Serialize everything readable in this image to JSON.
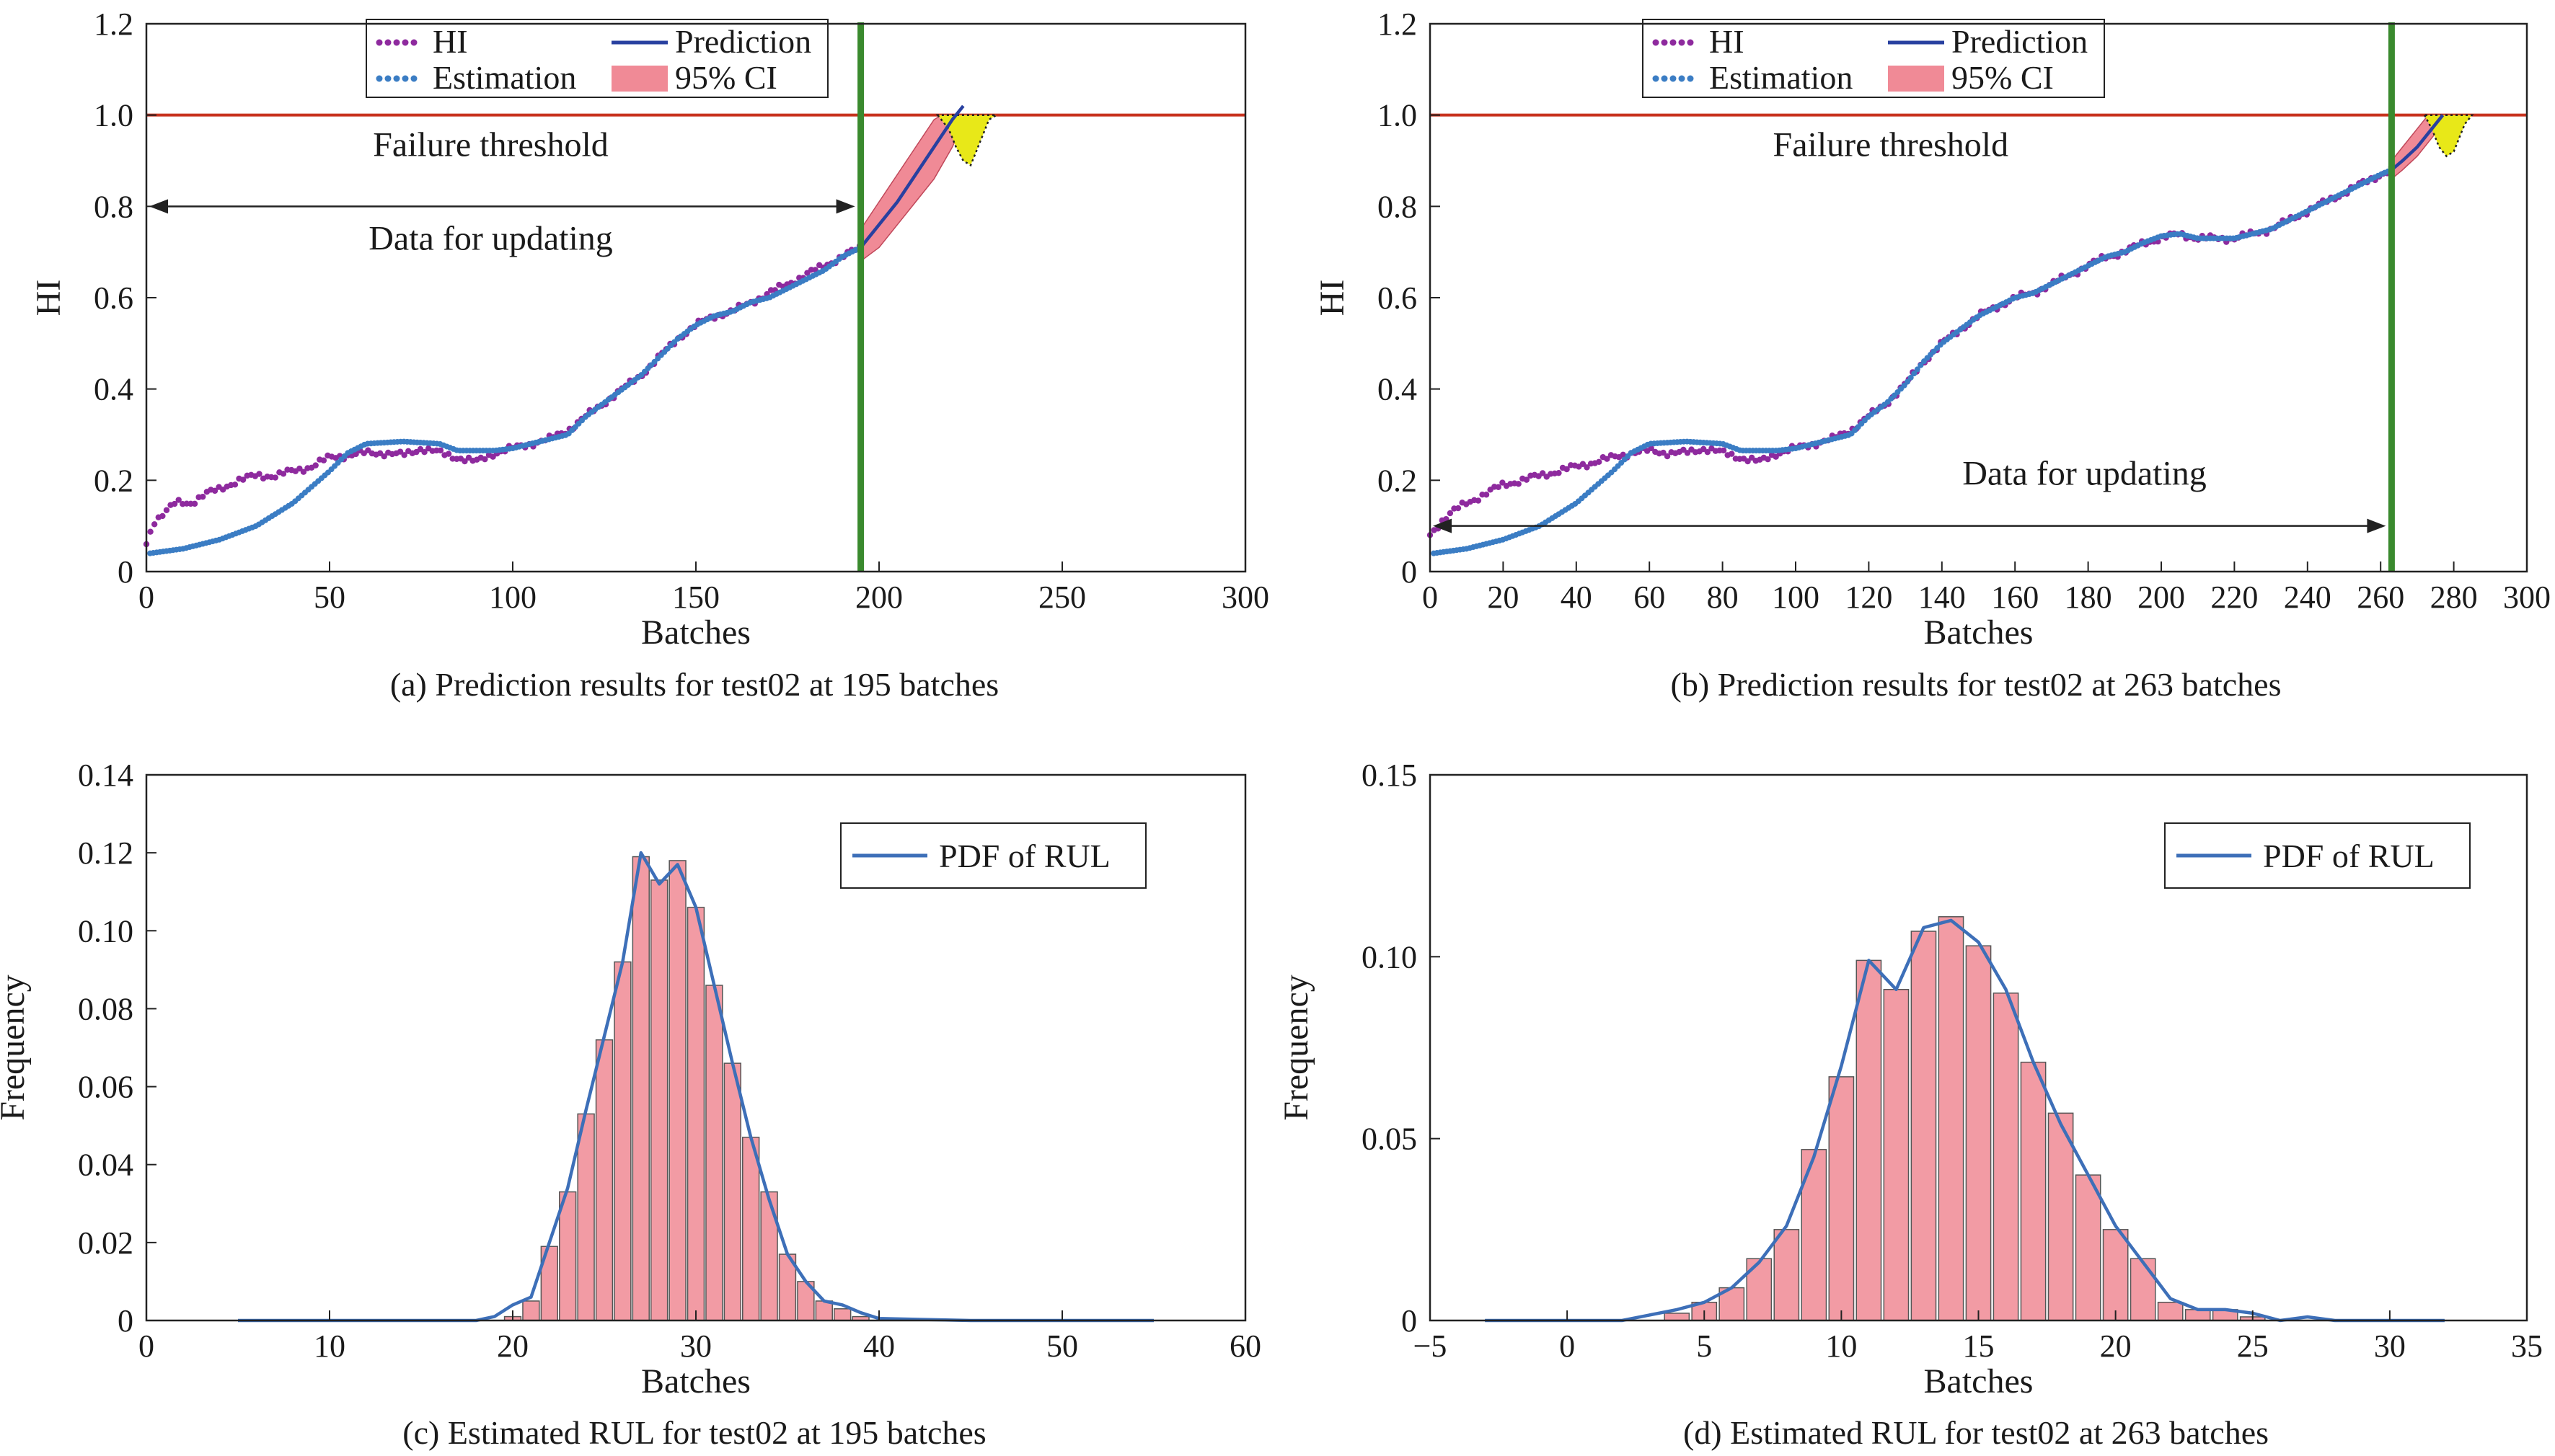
{
  "chart_data": [
    {
      "type": "line",
      "id": "a",
      "caption": "(a) Prediction results for test02 at 195 batches",
      "xlabel": "Batches",
      "ylabel": "HI",
      "xlim": [
        0,
        300
      ],
      "ylim": [
        0,
        1.2
      ],
      "xticks": [
        0,
        50,
        100,
        150,
        200,
        250,
        300
      ],
      "xtick_labels": [
        "0",
        "50",
        "100",
        "150",
        "200",
        "250",
        "300"
      ],
      "yticks": [
        0,
        0.2,
        0.4,
        0.6,
        0.8,
        1.0,
        1.2
      ],
      "ytick_labels": [
        "0",
        "0.2",
        "0.4",
        "0.6",
        "0.8",
        "1.0",
        "1.2"
      ],
      "legend": [
        "HI",
        "Prediction",
        "Estimation",
        "95% CI"
      ],
      "legend_position": "top-center",
      "threshold": 1.0,
      "threshold_label": "Failure threshold",
      "update_label": "Data for updating",
      "update_arrow": {
        "x": [
          0,
          195
        ],
        "y": 0.8
      },
      "label_positions": {
        "threshold_label": [
          94,
          0.91
        ],
        "update_label": [
          94,
          0.705
        ]
      },
      "current_batch": 195,
      "colors": {
        "hi": "#8e2a9e",
        "estimation": "#3b7dc4",
        "prediction": "#2840a0",
        "ci": "#f08a96",
        "threshold": "#c8321e",
        "vline": "#3a8a2e",
        "pdf_fill": "#e8e818"
      },
      "hi_series": [
        [
          0,
          0.06
        ],
        [
          2,
          0.11
        ],
        [
          5,
          0.13
        ],
        [
          8,
          0.15
        ],
        [
          12,
          0.15
        ],
        [
          16,
          0.17
        ],
        [
          20,
          0.18
        ],
        [
          25,
          0.2
        ],
        [
          30,
          0.21
        ],
        [
          35,
          0.21
        ],
        [
          40,
          0.22
        ],
        [
          45,
          0.23
        ],
        [
          50,
          0.25
        ],
        [
          55,
          0.255
        ],
        [
          60,
          0.26
        ],
        [
          65,
          0.26
        ],
        [
          70,
          0.255
        ],
        [
          75,
          0.27
        ],
        [
          80,
          0.26
        ],
        [
          85,
          0.25
        ],
        [
          90,
          0.24
        ],
        [
          95,
          0.26
        ],
        [
          100,
          0.27
        ],
        [
          105,
          0.28
        ],
        [
          110,
          0.29
        ],
        [
          115,
          0.31
        ],
        [
          120,
          0.34
        ],
        [
          125,
          0.37
        ],
        [
          130,
          0.4
        ],
        [
          135,
          0.43
        ],
        [
          140,
          0.47
        ],
        [
          145,
          0.51
        ],
        [
          150,
          0.54
        ],
        [
          155,
          0.56
        ],
        [
          160,
          0.57
        ],
        [
          165,
          0.59
        ],
        [
          170,
          0.61
        ],
        [
          175,
          0.63
        ],
        [
          180,
          0.65
        ],
        [
          185,
          0.67
        ],
        [
          190,
          0.69
        ],
        [
          195,
          0.71
        ]
      ],
      "estimation_series": [
        [
          1,
          0.04
        ],
        [
          10,
          0.05
        ],
        [
          20,
          0.07
        ],
        [
          30,
          0.1
        ],
        [
          40,
          0.15
        ],
        [
          50,
          0.22
        ],
        [
          55,
          0.26
        ],
        [
          60,
          0.28
        ],
        [
          70,
          0.285
        ],
        [
          80,
          0.28
        ],
        [
          85,
          0.265
        ],
        [
          90,
          0.265
        ],
        [
          95,
          0.265
        ],
        [
          100,
          0.27
        ],
        [
          105,
          0.28
        ],
        [
          110,
          0.29
        ],
        [
          115,
          0.3
        ],
        [
          120,
          0.34
        ],
        [
          125,
          0.37
        ],
        [
          130,
          0.4
        ],
        [
          135,
          0.43
        ],
        [
          140,
          0.47
        ],
        [
          145,
          0.51
        ],
        [
          150,
          0.54
        ],
        [
          155,
          0.56
        ],
        [
          160,
          0.57
        ],
        [
          165,
          0.59
        ],
        [
          170,
          0.6
        ],
        [
          175,
          0.62
        ],
        [
          180,
          0.64
        ],
        [
          185,
          0.66
        ],
        [
          190,
          0.69
        ],
        [
          195,
          0.71
        ]
      ],
      "prediction_series": [
        [
          195,
          0.71
        ],
        [
          200,
          0.76
        ],
        [
          205,
          0.81
        ],
        [
          210,
          0.87
        ],
        [
          215,
          0.93
        ],
        [
          220,
          0.99
        ],
        [
          223,
          1.02
        ]
      ],
      "ci_upper": [
        [
          195,
          0.75
        ],
        [
          200,
          0.81
        ],
        [
          205,
          0.87
        ],
        [
          210,
          0.93
        ],
        [
          215,
          0.99
        ],
        [
          217,
          1.0
        ]
      ],
      "ci_lower": [
        [
          195,
          0.68
        ],
        [
          200,
          0.71
        ],
        [
          205,
          0.76
        ],
        [
          210,
          0.81
        ],
        [
          215,
          0.86
        ],
        [
          220,
          0.93
        ],
        [
          224,
          1.0
        ]
      ],
      "pdf_shape": [
        [
          216,
          1.0
        ],
        [
          219,
          0.97
        ],
        [
          221,
          0.93
        ],
        [
          223,
          0.9
        ],
        [
          225,
          0.89
        ],
        [
          227,
          0.93
        ],
        [
          230,
          0.99
        ],
        [
          232,
          1.0
        ]
      ]
    },
    {
      "type": "line",
      "id": "b",
      "caption": "(b) Prediction results for test02 at 263 batches",
      "xlabel": "Batches",
      "ylabel": "HI",
      "xlim": [
        0,
        300
      ],
      "ylim": [
        0,
        1.2
      ],
      "xticks": [
        0,
        20,
        40,
        60,
        80,
        100,
        120,
        140,
        160,
        180,
        200,
        220,
        240,
        260,
        280,
        300
      ],
      "xtick_labels": [
        "0",
        "20",
        "40",
        "60",
        "80",
        "100",
        "120",
        "140",
        "160",
        "180",
        "200",
        "220",
        "240",
        "260",
        "280",
        "300"
      ],
      "yticks": [
        0,
        0.2,
        0.4,
        0.6,
        0.8,
        1.0,
        1.2
      ],
      "ytick_labels": [
        "0",
        "0.2",
        "0.4",
        "0.6",
        "0.8",
        "1.0",
        "1.2"
      ],
      "legend": [
        "HI",
        "Prediction",
        "Estimation",
        "95% CI"
      ],
      "legend_position": "top-center",
      "threshold": 1.0,
      "threshold_label": "Failure threshold",
      "update_label": "Data for updating",
      "update_arrow": {
        "x": [
          0,
          263
        ],
        "y": 0.1
      },
      "label_positions": {
        "threshold_label": [
          126,
          0.91
        ],
        "update_label": [
          179,
          0.19
        ]
      },
      "current_batch": 263,
      "colors": {
        "hi": "#8e2a9e",
        "estimation": "#3b7dc4",
        "prediction": "#2840a0",
        "ci": "#f08a96",
        "threshold": "#c8321e",
        "vline": "#3a8a2e",
        "pdf_fill": "#e8e818"
      },
      "hi_series": [
        [
          0,
          0.08
        ],
        [
          3,
          0.11
        ],
        [
          6,
          0.13
        ],
        [
          10,
          0.15
        ],
        [
          15,
          0.17
        ],
        [
          20,
          0.19
        ],
        [
          25,
          0.2
        ],
        [
          30,
          0.21
        ],
        [
          35,
          0.22
        ],
        [
          40,
          0.23
        ],
        [
          45,
          0.24
        ],
        [
          50,
          0.25
        ],
        [
          55,
          0.26
        ],
        [
          60,
          0.265
        ],
        [
          65,
          0.26
        ],
        [
          70,
          0.26
        ],
        [
          75,
          0.27
        ],
        [
          80,
          0.26
        ],
        [
          85,
          0.25
        ],
        [
          90,
          0.24
        ],
        [
          95,
          0.26
        ],
        [
          100,
          0.27
        ],
        [
          105,
          0.28
        ],
        [
          110,
          0.29
        ],
        [
          115,
          0.31
        ],
        [
          120,
          0.34
        ],
        [
          125,
          0.37
        ],
        [
          130,
          0.41
        ],
        [
          135,
          0.46
        ],
        [
          140,
          0.5
        ],
        [
          145,
          0.53
        ],
        [
          150,
          0.56
        ],
        [
          155,
          0.58
        ],
        [
          160,
          0.6
        ],
        [
          165,
          0.61
        ],
        [
          170,
          0.63
        ],
        [
          175,
          0.65
        ],
        [
          180,
          0.67
        ],
        [
          185,
          0.69
        ],
        [
          190,
          0.7
        ],
        [
          195,
          0.72
        ],
        [
          200,
          0.73
        ],
        [
          205,
          0.74
        ],
        [
          210,
          0.73
        ],
        [
          215,
          0.73
        ],
        [
          220,
          0.73
        ],
        [
          225,
          0.74
        ],
        [
          230,
          0.75
        ],
        [
          235,
          0.77
        ],
        [
          240,
          0.79
        ],
        [
          245,
          0.81
        ],
        [
          250,
          0.83
        ],
        [
          255,
          0.85
        ],
        [
          260,
          0.87
        ],
        [
          263,
          0.88
        ]
      ],
      "estimation_series": [
        [
          1,
          0.04
        ],
        [
          10,
          0.05
        ],
        [
          20,
          0.07
        ],
        [
          30,
          0.1
        ],
        [
          40,
          0.15
        ],
        [
          50,
          0.22
        ],
        [
          55,
          0.26
        ],
        [
          60,
          0.28
        ],
        [
          70,
          0.285
        ],
        [
          80,
          0.28
        ],
        [
          85,
          0.265
        ],
        [
          90,
          0.265
        ],
        [
          95,
          0.265
        ],
        [
          100,
          0.27
        ],
        [
          105,
          0.28
        ],
        [
          110,
          0.29
        ],
        [
          115,
          0.3
        ],
        [
          120,
          0.34
        ],
        [
          125,
          0.37
        ],
        [
          130,
          0.41
        ],
        [
          135,
          0.46
        ],
        [
          140,
          0.5
        ],
        [
          145,
          0.53
        ],
        [
          150,
          0.56
        ],
        [
          155,
          0.58
        ],
        [
          160,
          0.6
        ],
        [
          165,
          0.61
        ],
        [
          170,
          0.63
        ],
        [
          175,
          0.65
        ],
        [
          180,
          0.67
        ],
        [
          185,
          0.69
        ],
        [
          190,
          0.7
        ],
        [
          195,
          0.72
        ],
        [
          200,
          0.735
        ],
        [
          205,
          0.74
        ],
        [
          210,
          0.73
        ],
        [
          215,
          0.73
        ],
        [
          220,
          0.73
        ],
        [
          225,
          0.74
        ],
        [
          230,
          0.75
        ],
        [
          235,
          0.77
        ],
        [
          240,
          0.79
        ],
        [
          245,
          0.81
        ],
        [
          250,
          0.83
        ],
        [
          255,
          0.85
        ],
        [
          260,
          0.87
        ],
        [
          263,
          0.88
        ]
      ],
      "prediction_series": [
        [
          263,
          0.88
        ],
        [
          266,
          0.9
        ],
        [
          270,
          0.93
        ],
        [
          274,
          0.97
        ],
        [
          277,
          1.0
        ]
      ],
      "ci_upper": [
        [
          263,
          0.9
        ],
        [
          266,
          0.93
        ],
        [
          270,
          0.97
        ],
        [
          273,
          1.0
        ]
      ],
      "ci_lower": [
        [
          263,
          0.86
        ],
        [
          266,
          0.88
        ],
        [
          270,
          0.91
        ],
        [
          274,
          0.95
        ],
        [
          279,
          1.0
        ]
      ],
      "pdf_shape": [
        [
          272,
          1.0
        ],
        [
          274,
          0.97
        ],
        [
          276,
          0.93
        ],
        [
          278,
          0.91
        ],
        [
          280,
          0.92
        ],
        [
          283,
          0.98
        ],
        [
          285,
          1.0
        ]
      ]
    },
    {
      "type": "bar",
      "id": "c",
      "caption": "(c) Estimated RUL for test02 at 195 batches",
      "xlabel": "Batches",
      "ylabel": "Frequency",
      "xlim": [
        0,
        60
      ],
      "ylim": [
        0,
        0.14
      ],
      "xticks": [
        0,
        10,
        20,
        30,
        40,
        50,
        60
      ],
      "xtick_labels": [
        "0",
        "10",
        "20",
        "30",
        "40",
        "50",
        "60"
      ],
      "yticks": [
        0,
        0.02,
        0.04,
        0.06,
        0.08,
        0.1,
        0.12,
        0.14
      ],
      "ytick_labels": [
        "0",
        "0.02",
        "0.04",
        "0.06",
        "0.08",
        "0.10",
        "0.12",
        "0.14"
      ],
      "legend": [
        "PDF of RUL"
      ],
      "legend_position": "top-right",
      "bar_width": 0.9,
      "colors": {
        "bar": "#f29ba4",
        "bar_edge": "#555555",
        "line": "#3d6fb8"
      },
      "bins": [
        20,
        21,
        22,
        23,
        24,
        25,
        26,
        27,
        28,
        29,
        30,
        31,
        32,
        33,
        34,
        35,
        36,
        37,
        38,
        39
      ],
      "values": [
        0.001,
        0.005,
        0.019,
        0.033,
        0.053,
        0.072,
        0.092,
        0.119,
        0.113,
        0.118,
        0.106,
        0.086,
        0.066,
        0.047,
        0.033,
        0.017,
        0.01,
        0.005,
        0.003,
        0.001
      ],
      "pdf_x": [
        5,
        10,
        15,
        18,
        19,
        20,
        21,
        22,
        23,
        24,
        25,
        26,
        27,
        28,
        29,
        30,
        31,
        32,
        33,
        34,
        35,
        36,
        37,
        38,
        39,
        40,
        45,
        50,
        55
      ],
      "pdf_y": [
        0,
        0,
        0,
        0,
        0.001,
        0.004,
        0.006,
        0.02,
        0.034,
        0.054,
        0.073,
        0.092,
        0.12,
        0.112,
        0.117,
        0.106,
        0.086,
        0.066,
        0.047,
        0.031,
        0.017,
        0.01,
        0.005,
        0.004,
        0.002,
        0.0005,
        0,
        0,
        0
      ]
    },
    {
      "type": "bar",
      "id": "d",
      "caption": "(d) Estimated RUL for test02 at 263 batches",
      "xlabel": "Batches",
      "ylabel": "Frequency",
      "xlim": [
        -5,
        35
      ],
      "ylim": [
        0,
        0.15
      ],
      "xticks": [
        -5,
        0,
        5,
        10,
        15,
        20,
        25,
        30,
        35
      ],
      "xtick_labels": [
        "−5",
        "0",
        "5",
        "10",
        "15",
        "20",
        "25",
        "30",
        "35"
      ],
      "yticks": [
        0,
        0.05,
        0.1,
        0.15
      ],
      "ytick_labels": [
        "0",
        "0.05",
        "0.10",
        "0.15"
      ],
      "legend": [
        "PDF of RUL"
      ],
      "legend_position": "top-right",
      "bar_width": 0.9,
      "colors": {
        "bar": "#f29ba4",
        "bar_edge": "#555555",
        "line": "#3d6fb8"
      },
      "bins": [
        4,
        5,
        6,
        7,
        8,
        9,
        10,
        11,
        12,
        13,
        14,
        15,
        16,
        17,
        18,
        19,
        20,
        21,
        22,
        23,
        24,
        25
      ],
      "values": [
        0.002,
        0.005,
        0.009,
        0.017,
        0.025,
        0.047,
        0.067,
        0.099,
        0.091,
        0.107,
        0.111,
        0.103,
        0.09,
        0.071,
        0.057,
        0.04,
        0.025,
        0.017,
        0.005,
        0.003,
        0.003,
        0.001
      ],
      "pdf_x": [
        -3,
        0,
        2,
        4,
        5,
        6,
        7,
        8,
        9,
        10,
        11,
        12,
        13,
        14,
        15,
        16,
        17,
        18,
        19,
        20,
        21,
        22,
        23,
        24,
        25,
        26,
        27,
        28,
        30,
        32
      ],
      "pdf_y": [
        0,
        0,
        0,
        0.003,
        0.005,
        0.009,
        0.016,
        0.026,
        0.045,
        0.07,
        0.099,
        0.091,
        0.108,
        0.11,
        0.104,
        0.091,
        0.071,
        0.054,
        0.04,
        0.026,
        0.016,
        0.006,
        0.003,
        0.003,
        0.002,
        0,
        0.001,
        0,
        0,
        0
      ]
    }
  ]
}
